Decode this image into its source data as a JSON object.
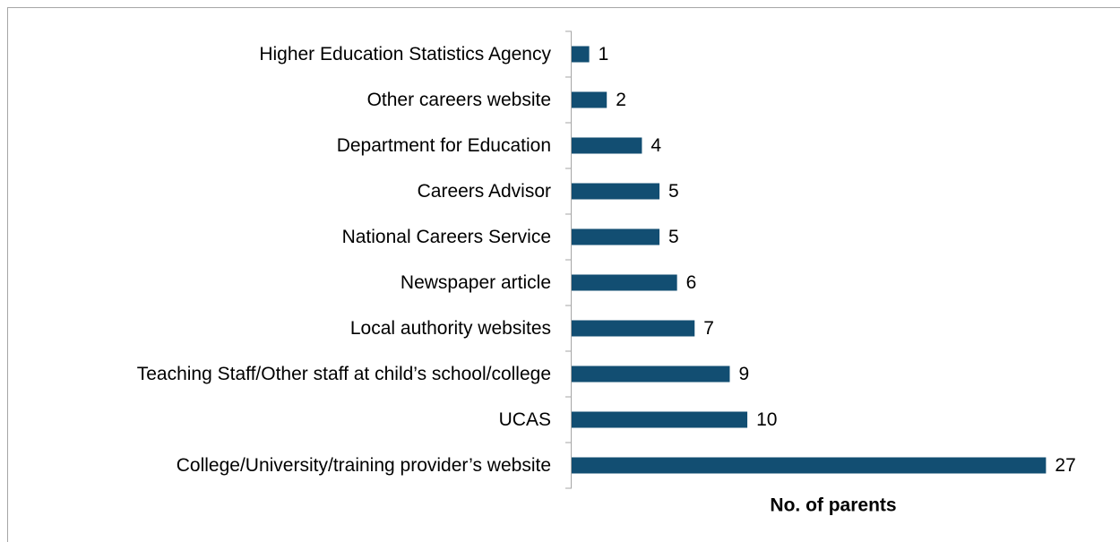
{
  "chart_data": {
    "type": "bar",
    "orientation": "horizontal",
    "categories": [
      "Higher Education Statistics Agency",
      "Other careers website",
      "Department for Education",
      "Careers Advisor",
      "National Careers Service",
      "Newspaper article",
      "Local authority websites",
      "Teaching Staff/Other staff at child’s school/college",
      "UCAS",
      "College/University/training provider’s website"
    ],
    "values": [
      1,
      2,
      4,
      5,
      5,
      6,
      7,
      9,
      10,
      27
    ],
    "color": "#124e72",
    "xlim": [
      0,
      28
    ],
    "xlabel": "No. of parents"
  }
}
